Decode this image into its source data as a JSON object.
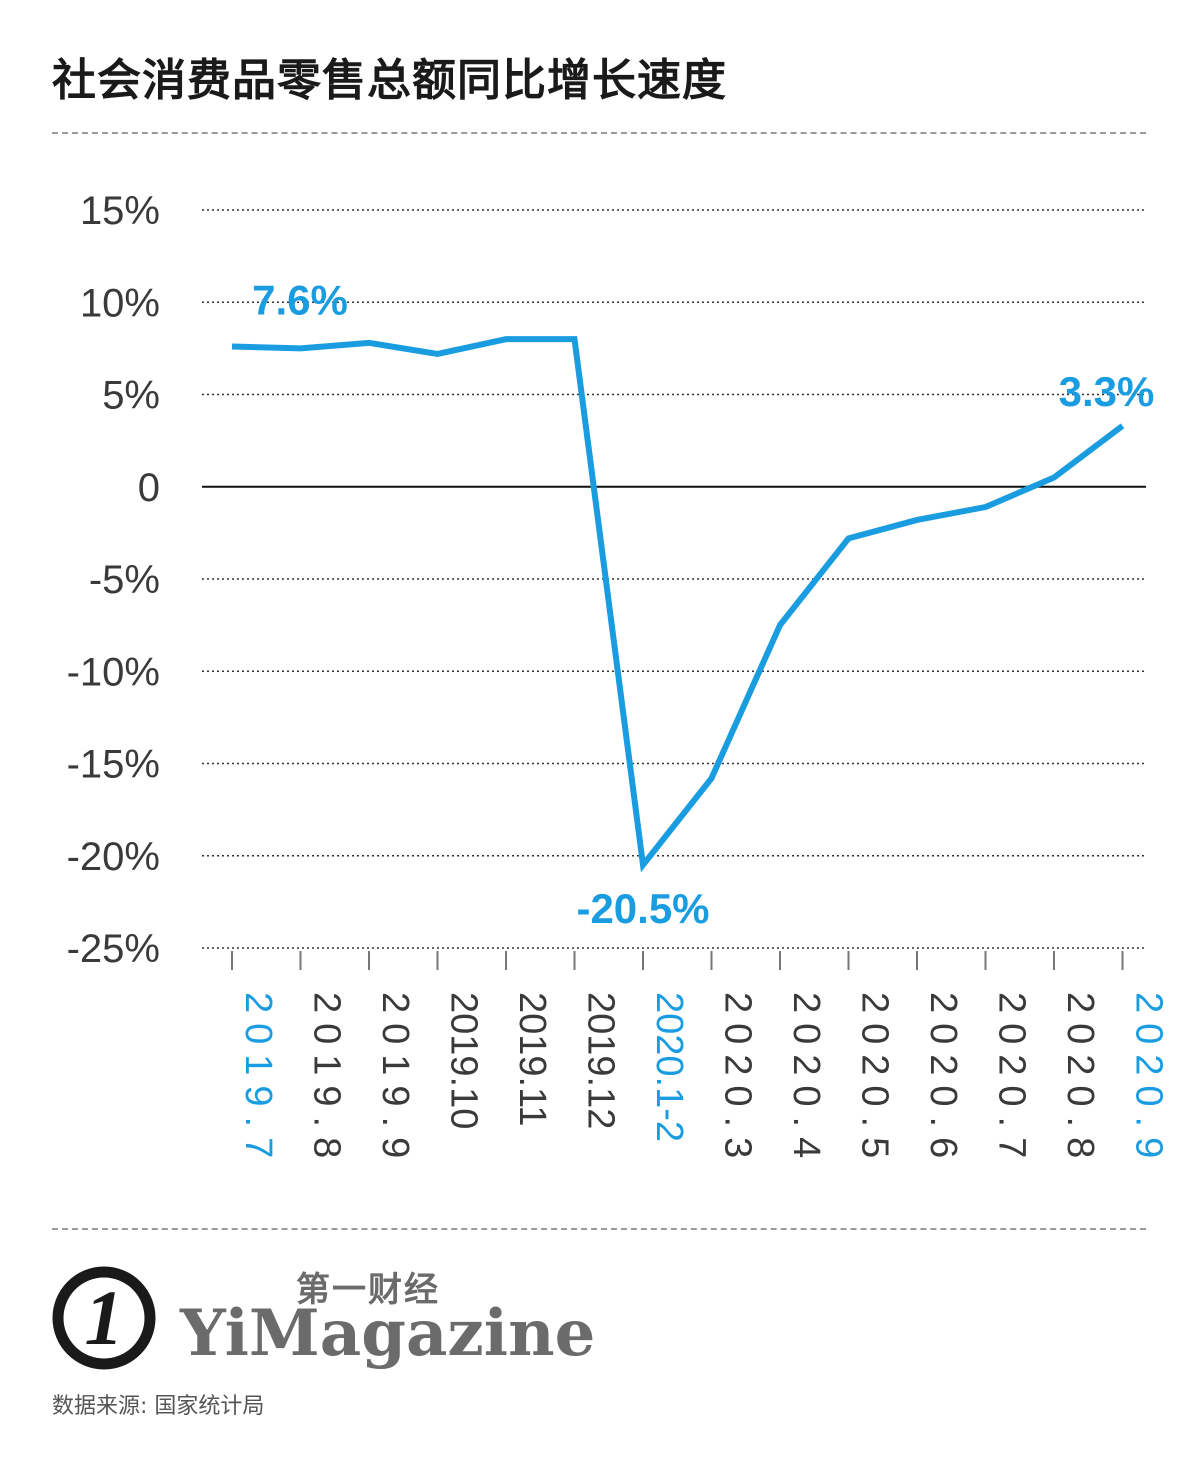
{
  "title": "社会消费品零售总额同比增长速度",
  "brand": {
    "logo_mark": "1",
    "name_cn": "第一财经",
    "name_en": "YiMagazine"
  },
  "source": "数据来源: 国家统计局",
  "colors": {
    "accent": "#1a9de0",
    "text": "#1a1a1a",
    "tick_text": "#3a3a3a",
    "grid": "#333333",
    "muted": "#6b6b6b"
  },
  "chart_data": {
    "type": "line",
    "title": "社会消费品零售总额同比增长速度",
    "xlabel": "",
    "ylabel": "",
    "ylim": [
      -25,
      15
    ],
    "yticks": [
      15,
      10,
      5,
      0,
      -5,
      -10,
      -15,
      -20,
      -25
    ],
    "ytick_labels": [
      "15%",
      "10%",
      "5%",
      "0",
      "-5%",
      "-10%",
      "-15%",
      "-20%",
      "-25%"
    ],
    "grid": "horizontal dotted",
    "categories": [
      "2019.7",
      "2019.8",
      "2019.9",
      "2019.10",
      "2019.11",
      "2019.12",
      "2020.1-2",
      "2020.3",
      "2020.4",
      "2020.5",
      "2020.6",
      "2020.7",
      "2020.8",
      "2020.9"
    ],
    "highlight_categories": [
      "2019.7",
      "2020.1-2",
      "2020.9"
    ],
    "series": [
      {
        "values": [
          7.6,
          7.5,
          7.8,
          7.2,
          8.0,
          8.0,
          -20.5,
          -15.8,
          -7.5,
          -2.8,
          -1.8,
          -1.1,
          0.5,
          3.3
        ]
      }
    ],
    "annotations": [
      {
        "text": "7.6%",
        "index": 0
      },
      {
        "text": "-20.5%",
        "index": 6
      },
      {
        "text": "3.3%",
        "index": 13
      }
    ]
  }
}
